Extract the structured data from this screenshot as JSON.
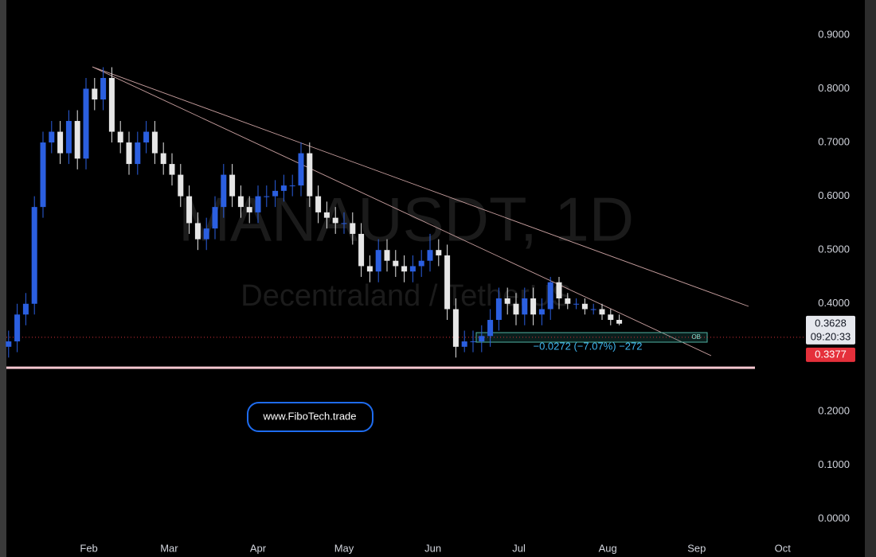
{
  "chart_data": {
    "type": "candlestick",
    "title": "MANAUSDT, 1D",
    "subtitle": "Decentraland / TetherUS",
    "x": [
      3,
      6,
      9,
      12,
      15,
      18,
      21,
      24,
      27,
      30,
      33,
      36,
      39,
      42,
      45,
      48,
      51,
      54,
      57,
      60,
      63,
      66,
      69,
      72,
      75,
      78,
      81,
      84,
      87,
      90,
      93,
      96,
      99,
      102,
      105,
      108,
      111,
      114,
      117,
      120,
      123,
      126,
      129,
      132,
      135,
      138,
      141,
      144,
      147,
      150,
      153,
      156,
      159,
      162,
      165,
      168,
      171,
      174,
      177,
      180,
      183,
      186,
      189,
      192,
      195,
      198,
      201,
      204,
      207,
      210,
      213,
      216
    ],
    "open": [
      0.32,
      0.33,
      0.38,
      0.4,
      0.58,
      0.7,
      0.72,
      0.68,
      0.74,
      0.67,
      0.8,
      0.78,
      0.82,
      0.72,
      0.7,
      0.66,
      0.7,
      0.72,
      0.68,
      0.66,
      0.64,
      0.6,
      0.55,
      0.52,
      0.54,
      0.58,
      0.64,
      0.6,
      0.58,
      0.57,
      0.6,
      0.6,
      0.61,
      0.62,
      0.62,
      0.68,
      0.6,
      0.57,
      0.56,
      0.55,
      0.55,
      0.53,
      0.47,
      0.46,
      0.5,
      0.48,
      0.47,
      0.46,
      0.47,
      0.48,
      0.5,
      0.49,
      0.39,
      0.32,
      0.33,
      0.33,
      0.34,
      0.37,
      0.41,
      0.4,
      0.38,
      0.41,
      0.38,
      0.39,
      0.44,
      0.41,
      0.4,
      0.4,
      0.39,
      0.39,
      0.38,
      0.37
    ],
    "high": [
      0.35,
      0.4,
      0.42,
      0.6,
      0.72,
      0.74,
      0.74,
      0.76,
      0.76,
      0.82,
      0.82,
      0.84,
      0.84,
      0.74,
      0.72,
      0.72,
      0.74,
      0.74,
      0.7,
      0.68,
      0.66,
      0.62,
      0.57,
      0.56,
      0.6,
      0.66,
      0.66,
      0.62,
      0.6,
      0.62,
      0.62,
      0.63,
      0.64,
      0.64,
      0.7,
      0.7,
      0.62,
      0.59,
      0.58,
      0.57,
      0.57,
      0.55,
      0.49,
      0.52,
      0.52,
      0.5,
      0.49,
      0.49,
      0.5,
      0.53,
      0.52,
      0.51,
      0.41,
      0.35,
      0.35,
      0.36,
      0.39,
      0.43,
      0.43,
      0.42,
      0.43,
      0.43,
      0.41,
      0.45,
      0.45,
      0.42,
      0.41,
      0.41,
      0.4,
      0.4,
      0.39,
      0.38
    ],
    "low": [
      0.3,
      0.31,
      0.36,
      0.38,
      0.56,
      0.68,
      0.66,
      0.66,
      0.65,
      0.65,
      0.76,
      0.76,
      0.7,
      0.68,
      0.64,
      0.64,
      0.68,
      0.66,
      0.64,
      0.62,
      0.58,
      0.53,
      0.5,
      0.5,
      0.52,
      0.56,
      0.58,
      0.56,
      0.55,
      0.55,
      0.58,
      0.58,
      0.59,
      0.6,
      0.6,
      0.58,
      0.55,
      0.54,
      0.53,
      0.53,
      0.51,
      0.45,
      0.44,
      0.44,
      0.46,
      0.45,
      0.44,
      0.44,
      0.45,
      0.46,
      0.47,
      0.37,
      0.3,
      0.31,
      0.31,
      0.31,
      0.32,
      0.35,
      0.38,
      0.36,
      0.36,
      0.36,
      0.36,
      0.37,
      0.39,
      0.39,
      0.39,
      0.38,
      0.38,
      0.37,
      0.36,
      0.36
    ],
    "close": [
      0.33,
      0.38,
      0.4,
      0.58,
      0.7,
      0.72,
      0.68,
      0.74,
      0.67,
      0.8,
      0.78,
      0.82,
      0.72,
      0.7,
      0.66,
      0.7,
      0.72,
      0.68,
      0.66,
      0.64,
      0.6,
      0.55,
      0.52,
      0.54,
      0.58,
      0.64,
      0.6,
      0.58,
      0.57,
      0.6,
      0.6,
      0.61,
      0.62,
      0.62,
      0.68,
      0.6,
      0.57,
      0.56,
      0.55,
      0.55,
      0.53,
      0.47,
      0.46,
      0.5,
      0.48,
      0.47,
      0.46,
      0.47,
      0.48,
      0.5,
      0.49,
      0.39,
      0.32,
      0.33,
      0.33,
      0.34,
      0.37,
      0.41,
      0.4,
      0.38,
      0.41,
      0.38,
      0.39,
      0.44,
      0.41,
      0.4,
      0.4,
      0.39,
      0.39,
      0.38,
      0.37,
      0.363
    ],
    "up_color": "#2b5fe0",
    "down_color": "#e6e6e6",
    "xlim": [
      0,
      280
    ],
    "xticks": [
      {
        "value": 31,
        "label": "Feb"
      },
      {
        "value": 59,
        "label": "Mar"
      },
      {
        "value": 90,
        "label": "Apr"
      },
      {
        "value": 120,
        "label": "May"
      },
      {
        "value": 151,
        "label": "Jun"
      },
      {
        "value": 181,
        "label": "Jul"
      },
      {
        "value": 212,
        "label": "Aug"
      },
      {
        "value": 243,
        "label": "Sep"
      },
      {
        "value": 273,
        "label": "Oct"
      }
    ],
    "ylim": [
      -0.071,
      0.965
    ],
    "yticks": [
      {
        "value": 0,
        "label": "0.0000"
      },
      {
        "value": 0.1,
        "label": "0.1000"
      },
      {
        "value": 0.2,
        "label": "0.2000"
      },
      {
        "value": 0.4,
        "label": "0.4000"
      },
      {
        "value": 0.5,
        "label": "0.5000"
      },
      {
        "value": 0.6,
        "label": "0.6000"
      },
      {
        "value": 0.7,
        "label": "0.7000"
      },
      {
        "value": 0.8,
        "label": "0.8000"
      },
      {
        "value": 0.9,
        "label": "0.9000"
      }
    ],
    "last_price": {
      "value": 0.3628,
      "label": "0.3628"
    },
    "countdown": "09:20:33",
    "level": {
      "value": 0.3377,
      "label": "0.3377"
    },
    "support_level": 0.281,
    "ob_label": "OB",
    "measure_label": "−0.0272 (−7.07%) −272",
    "website": "www.FiboTech.trade"
  }
}
